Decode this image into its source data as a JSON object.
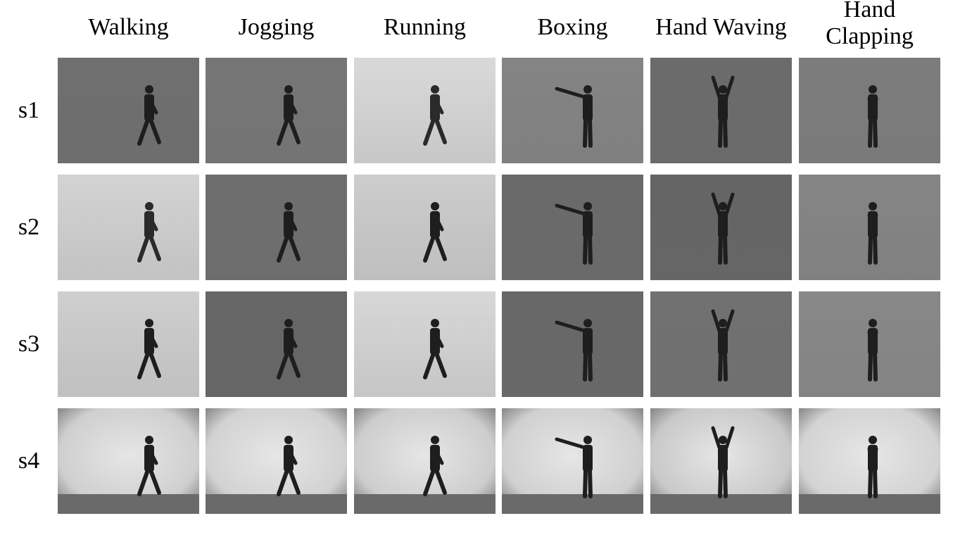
{
  "columns": [
    {
      "lines": [
        "Walking"
      ]
    },
    {
      "lines": [
        "Jogging"
      ]
    },
    {
      "lines": [
        "Running"
      ]
    },
    {
      "lines": [
        "Boxing"
      ]
    },
    {
      "lines": [
        "Hand Waving"
      ]
    },
    {
      "lines": [
        "Hand",
        "Clapping"
      ]
    }
  ],
  "rows": [
    {
      "label": "s1",
      "scene": "outdoor",
      "tones": [
        "#747474",
        "#7b7b7b",
        "#e2e2e2",
        "#8a8a8a",
        "#707070",
        "#828282"
      ]
    },
    {
      "label": "s2",
      "scene": "outdoor",
      "tones": [
        "#dcdcdc",
        "#737373",
        "#d6d6d6",
        "#6f6f6f",
        "#6a6a6a",
        "#8b8b8b"
      ]
    },
    {
      "label": "s3",
      "scene": "outdoor",
      "tones": [
        "#d8d8d8",
        "#6b6b6b",
        "#e0e0e0",
        "#6d6d6d",
        "#767676",
        "#8e8e8e"
      ]
    },
    {
      "label": "s4",
      "scene": "indoor",
      "tones": [
        "#cfcfcf",
        "#d2d2d2",
        "#cdcdcd",
        "#d0d0d0",
        "#c9c9c9",
        "#d3d3d3"
      ]
    }
  ]
}
